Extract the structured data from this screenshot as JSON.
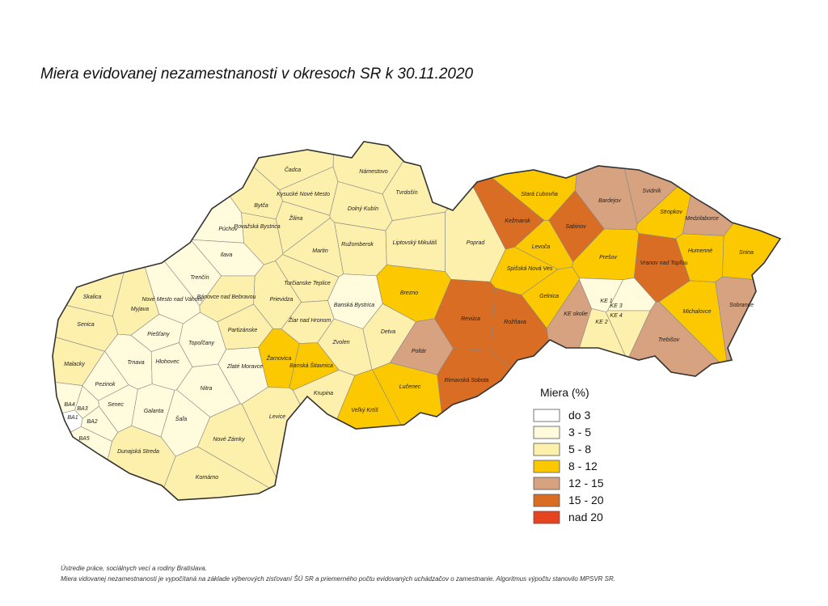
{
  "title": "Miera evidovanej nezamestnanosti v okresoch SR k 30.11.2020",
  "legend": {
    "title": "Miera (%)",
    "items": [
      {
        "label": "do 3",
        "color": "#ffffff"
      },
      {
        "label": "3 - 5",
        "color": "#fffbdc"
      },
      {
        "label": "5 - 8",
        "color": "#fdefac"
      },
      {
        "label": "8 - 12",
        "color": "#fcc800"
      },
      {
        "label": "12 - 15",
        "color": "#d6a27f"
      },
      {
        "label": "15 - 20",
        "color": "#d86d23"
      },
      {
        "label": "nad 20",
        "color": "#e8431f"
      }
    ]
  },
  "districts": [
    {
      "name": "Čadca",
      "class": 2
    },
    {
      "name": "Kysucké Nové Mesto",
      "class": 2
    },
    {
      "name": "Námestovo",
      "class": 2
    },
    {
      "name": "Tvrdošín",
      "class": 2
    },
    {
      "name": "Bytča",
      "class": 2
    },
    {
      "name": "Žilina",
      "class": 2
    },
    {
      "name": "Dolný Kubín",
      "class": 2
    },
    {
      "name": "Považská Bystrica",
      "class": 2
    },
    {
      "name": "Púchov",
      "class": 1
    },
    {
      "name": "Martin",
      "class": 2
    },
    {
      "name": "Ružomberok",
      "class": 2
    },
    {
      "name": "Liptovský Mikuláš",
      "class": 2
    },
    {
      "name": "Poprad",
      "class": 2
    },
    {
      "name": "Stará Ľubovňa",
      "class": 3
    },
    {
      "name": "Kežmarok",
      "class": 5
    },
    {
      "name": "Sabinov",
      "class": 5
    },
    {
      "name": "Bardejov",
      "class": 4
    },
    {
      "name": "Svidník",
      "class": 4
    },
    {
      "name": "Stropkov",
      "class": 3
    },
    {
      "name": "Medzilaborce",
      "class": 4
    },
    {
      "name": "Levoča",
      "class": 3
    },
    {
      "name": "Prešov",
      "class": 3
    },
    {
      "name": "Vranov nad Topľou",
      "class": 5
    },
    {
      "name": "Humenné",
      "class": 3
    },
    {
      "name": "Snina",
      "class": 3
    },
    {
      "name": "Ilava",
      "class": 1
    },
    {
      "name": "Trenčín",
      "class": 1
    },
    {
      "name": "Turčianske Teplice",
      "class": 2
    },
    {
      "name": "Banská Bystrica",
      "class": 1
    },
    {
      "name": "Brezno",
      "class": 3
    },
    {
      "name": "Spišská Nová Ves",
      "class": 3
    },
    {
      "name": "Gelnica",
      "class": 3
    },
    {
      "name": "Rožňava",
      "class": 5
    },
    {
      "name": "Revúca",
      "class": 5
    },
    {
      "name": "KE okolie",
      "class": 4
    },
    {
      "name": "KE 1",
      "class": 1
    },
    {
      "name": "KE 2",
      "class": 2
    },
    {
      "name": "KE 3",
      "class": 1
    },
    {
      "name": "KE 4",
      "class": 2
    },
    {
      "name": "Michalovce",
      "class": 3
    },
    {
      "name": "Sobrance",
      "class": 4
    },
    {
      "name": "Trebišov",
      "class": 4
    },
    {
      "name": "Skalica",
      "class": 2
    },
    {
      "name": "Myjava",
      "class": 2
    },
    {
      "name": "Nové Mesto nad Váhom",
      "class": 1
    },
    {
      "name": "Bánovce nad Bebravou",
      "class": 2
    },
    {
      "name": "Prievidza",
      "class": 2
    },
    {
      "name": "Senica",
      "class": 2
    },
    {
      "name": "Piešťany",
      "class": 1
    },
    {
      "name": "Partizánske",
      "class": 2
    },
    {
      "name": "Žiar nad Hronom",
      "class": 2
    },
    {
      "name": "Zvolen",
      "class": 2
    },
    {
      "name": "Detva",
      "class": 2
    },
    {
      "name": "Topoľčany",
      "class": 1
    },
    {
      "name": "Malacky",
      "class": 2
    },
    {
      "name": "Trnava",
      "class": 1
    },
    {
      "name": "Hlohovec",
      "class": 1
    },
    {
      "name": "Žarnovica",
      "class": 3
    },
    {
      "name": "Banská Štiavnica",
      "class": 3
    },
    {
      "name": "Zlaté Moravce",
      "class": 1
    },
    {
      "name": "Poltár",
      "class": 4
    },
    {
      "name": "Rimavská Sobota",
      "class": 5
    },
    {
      "name": "Lučenec",
      "class": 3
    },
    {
      "name": "Pezinok",
      "class": 1
    },
    {
      "name": "Nitra",
      "class": 1
    },
    {
      "name": "Krupina",
      "class": 2
    },
    {
      "name": "Veľký Krtíš",
      "class": 3
    },
    {
      "name": "Senec",
      "class": 1
    },
    {
      "name": "Galanta",
      "class": 1
    },
    {
      "name": "Šaľa",
      "class": 1
    },
    {
      "name": "Levice",
      "class": 2
    },
    {
      "name": "BA4",
      "class": 1
    },
    {
      "name": "BA3",
      "class": 1
    },
    {
      "name": "BA1",
      "class": 0
    },
    {
      "name": "BA2",
      "class": 1
    },
    {
      "name": "BA5",
      "class": 1
    },
    {
      "name": "Dunajská Streda",
      "class": 2
    },
    {
      "name": "Nové Zámky",
      "class": 2
    },
    {
      "name": "Komárno",
      "class": 2
    }
  ],
  "footer": [
    "Ústredie práce, sociálnych vecí a rodiny Bratislava.",
    "Miera vidovanej nezamestnanosti  je vypočítaná na základe výberových zisťovaní ŠÚ SR a priemerného počtu evidovaných uchádzačov o zamestnanie. Algoritmus výpočtu stanovilo MPSVR SR."
  ]
}
